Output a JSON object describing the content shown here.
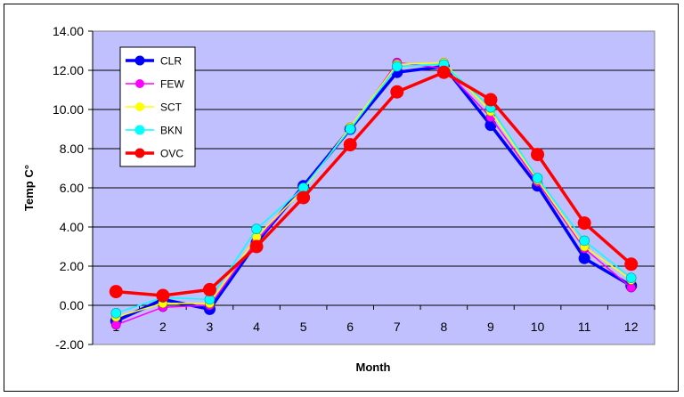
{
  "chart_data": {
    "type": "line",
    "xlabel": "Month",
    "ylabel": "Temp C°",
    "x": [
      1,
      2,
      3,
      4,
      5,
      6,
      7,
      8,
      9,
      10,
      11,
      12
    ],
    "ylim": [
      -2,
      14
    ],
    "yticks": [
      "14.00",
      "12.00",
      "10.00",
      "8.00",
      "6.00",
      "4.00",
      "2.00",
      "0.00",
      "-2.00"
    ],
    "grid": true,
    "legend_position": "top-left",
    "plot_background": "#c0c0ff",
    "series": [
      {
        "name": "CLR",
        "color": "#0000ff",
        "values": [
          -0.8,
          0.3,
          -0.2,
          3.2,
          6.1,
          9.0,
          11.9,
          12.2,
          9.2,
          6.1,
          2.4,
          1.0
        ]
      },
      {
        "name": "FEW",
        "color": "#ff00ff",
        "values": [
          -1.0,
          -0.1,
          0.0,
          3.3,
          6.0,
          9.0,
          12.4,
          12.1,
          9.6,
          6.3,
          2.9,
          0.9
        ]
      },
      {
        "name": "SCT",
        "color": "#ffff00",
        "values": [
          -0.6,
          0.1,
          0.1,
          3.5,
          5.9,
          9.1,
          12.3,
          12.4,
          9.9,
          6.4,
          3.0,
          1.3
        ]
      },
      {
        "name": "BKN",
        "color": "#00ffff",
        "values": [
          -0.4,
          0.4,
          0.3,
          3.9,
          6.0,
          9.0,
          12.2,
          12.3,
          10.1,
          6.5,
          3.3,
          1.4
        ]
      },
      {
        "name": "OVC",
        "color": "#ff0000",
        "values": [
          0.7,
          0.5,
          0.8,
          3.0,
          5.5,
          8.2,
          10.9,
          11.9,
          10.5,
          7.7,
          4.2,
          2.1
        ]
      }
    ]
  }
}
